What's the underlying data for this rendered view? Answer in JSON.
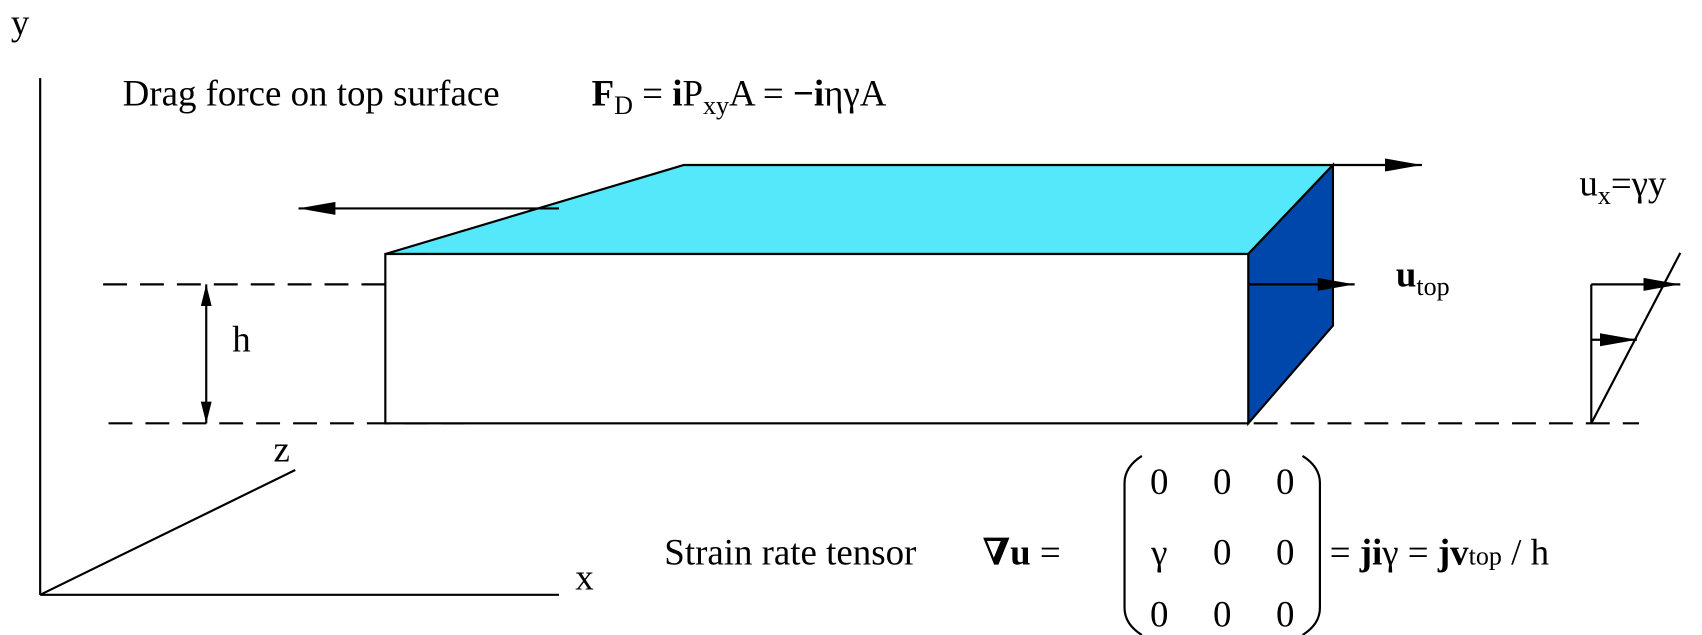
{
  "axes": {
    "x": "x",
    "y": "y",
    "z": "z"
  },
  "height_label": "h",
  "drag": {
    "label": "Drag force on top surface",
    "equation": [
      "F",
      "D",
      " = ",
      "i",
      "P",
      "xy",
      "A = ",
      "−i",
      "ηγA"
    ]
  },
  "profile_label": [
    "u",
    "x",
    "=γy"
  ],
  "top_velocity": [
    "u",
    "top"
  ],
  "strain": {
    "label": "Strain rate tensor",
    "lhs": [
      "∇u",
      " ="
    ],
    "matrix": [
      [
        "0",
        "0",
        "0"
      ],
      [
        "γ",
        "0",
        "0"
      ],
      [
        "0",
        "0",
        "0"
      ]
    ],
    "rhs": [
      "= ",
      "ji",
      "γ = ",
      "j",
      "v",
      "top",
      " / h"
    ]
  }
}
